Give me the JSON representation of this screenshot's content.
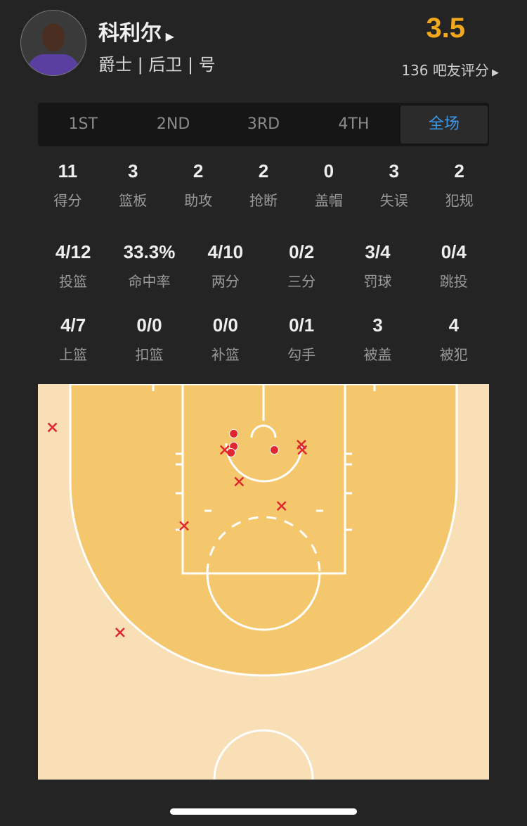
{
  "player": {
    "name": "科利尔",
    "info": "爵士 | 后卫 | 号",
    "rating": "3.5",
    "rating_count": "136 吧友评分"
  },
  "tabs": [
    {
      "label": "1ST"
    },
    {
      "label": "2ND"
    },
    {
      "label": "3RD"
    },
    {
      "label": "4TH"
    },
    {
      "label": "全场",
      "active": true
    }
  ],
  "stats_row1": [
    {
      "v": "11",
      "l": "得分"
    },
    {
      "v": "3",
      "l": "篮板"
    },
    {
      "v": "2",
      "l": "助攻"
    },
    {
      "v": "2",
      "l": "抢断"
    },
    {
      "v": "0",
      "l": "盖帽"
    },
    {
      "v": "3",
      "l": "失误"
    },
    {
      "v": "2",
      "l": "犯规"
    }
  ],
  "stats_row2": [
    {
      "v": "4/12",
      "l": "投篮"
    },
    {
      "v": "33.3%",
      "l": "命中率"
    },
    {
      "v": "4/10",
      "l": "两分"
    },
    {
      "v": "0/2",
      "l": "三分"
    },
    {
      "v": "3/4",
      "l": "罚球"
    },
    {
      "v": "0/4",
      "l": "跳投"
    }
  ],
  "stats_row3": [
    {
      "v": "4/7",
      "l": "上篮"
    },
    {
      "v": "0/0",
      "l": "扣篮"
    },
    {
      "v": "0/0",
      "l": "补篮"
    },
    {
      "v": "0/1",
      "l": "勾手"
    },
    {
      "v": "3",
      "l": "被盖"
    },
    {
      "v": "4",
      "l": "被犯"
    }
  ],
  "colors": {
    "rating": "#f1a81c",
    "active_tab": "#3c9ae8",
    "shot": "#e0262e",
    "court_inner": "#f5c76d",
    "court_outer": "#f8dfb6"
  },
  "shot_chart": {
    "units": "feet from basket",
    "shots": [
      {
        "x": -3.3,
        "y": 0.5,
        "made": true
      },
      {
        "x": -3.3,
        "y": 1.9,
        "made": true
      },
      {
        "x": -3.6,
        "y": 2.6,
        "made": true
      },
      {
        "x": 1.2,
        "y": 2.3,
        "made": true
      },
      {
        "x": -23.4,
        "y": -0.2,
        "made": false
      },
      {
        "x": -4.3,
        "y": 2.3,
        "made": false
      },
      {
        "x": 4.2,
        "y": 1.7,
        "made": false
      },
      {
        "x": 4.3,
        "y": 2.3,
        "made": false
      },
      {
        "x": -2.7,
        "y": 5.8,
        "made": false
      },
      {
        "x": 2.0,
        "y": 8.5,
        "made": false
      },
      {
        "x": -8.8,
        "y": 10.7,
        "made": false
      },
      {
        "x": -15.9,
        "y": 22.5,
        "made": false
      }
    ]
  }
}
